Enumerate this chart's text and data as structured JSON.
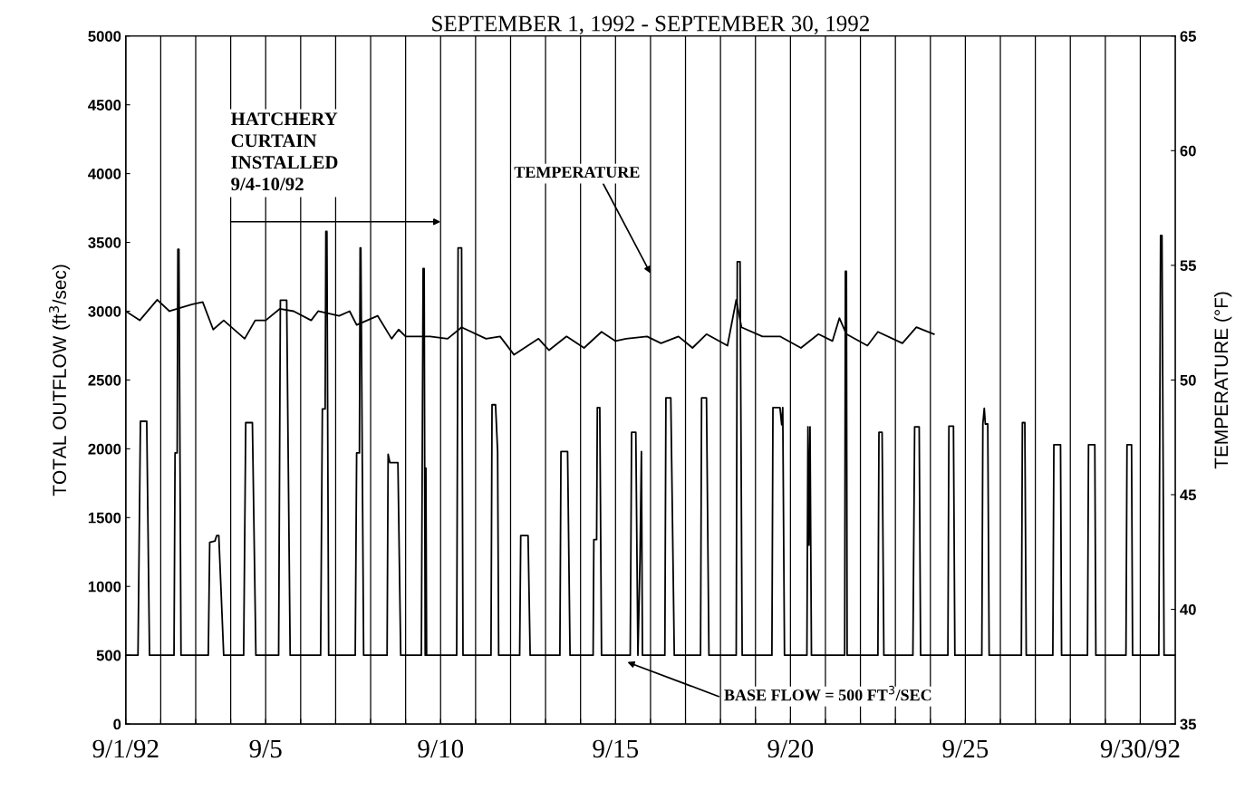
{
  "chart_data": {
    "type": "line",
    "title": "SEPTEMBER 1, 1992 - SEPTEMBER 30, 1992",
    "ylabel": "TOTAL OUTFLOW (ft$^{3}$/sec)",
    "y2label": "TEMPERATURE (°F)",
    "xlim": [
      "1992-09-01",
      "1992-10-01"
    ],
    "xticks": [
      {
        "value": "1992-09-01",
        "label": "9/1/92"
      },
      {
        "value": "1992-09-02",
        "label": null
      },
      {
        "value": "1992-09-03",
        "label": null
      },
      {
        "value": "1992-09-04",
        "label": null
      },
      {
        "value": "1992-09-05",
        "label": "9/5"
      },
      {
        "value": "1992-09-06",
        "label": null
      },
      {
        "value": "1992-09-07",
        "label": null
      },
      {
        "value": "1992-09-08",
        "label": null
      },
      {
        "value": "1992-09-09",
        "label": null
      },
      {
        "value": "1992-09-10",
        "label": "9/10"
      },
      {
        "value": "1992-09-11",
        "label": null
      },
      {
        "value": "1992-09-12",
        "label": null
      },
      {
        "value": "1992-09-13",
        "label": null
      },
      {
        "value": "1992-09-14",
        "label": null
      },
      {
        "value": "1992-09-15",
        "label": "9/15"
      },
      {
        "value": "1992-09-16",
        "label": null
      },
      {
        "value": "1992-09-17",
        "label": null
      },
      {
        "value": "1992-09-18",
        "label": null
      },
      {
        "value": "1992-09-19",
        "label": null
      },
      {
        "value": "1992-09-20",
        "label": "9/20"
      },
      {
        "value": "1992-09-21",
        "label": null
      },
      {
        "value": "1992-09-22",
        "label": null
      },
      {
        "value": "1992-09-23",
        "label": null
      },
      {
        "value": "1992-09-24",
        "label": null
      },
      {
        "value": "1992-09-25",
        "label": "9/25"
      },
      {
        "value": "1992-09-26",
        "label": null
      },
      {
        "value": "1992-09-27",
        "label": null
      },
      {
        "value": "1992-09-28",
        "label": null
      },
      {
        "value": "1992-09-29",
        "label": null
      },
      {
        "value": "1992-09-30",
        "label": "9/30/92"
      }
    ],
    "ylim": [
      0,
      5000
    ],
    "yticks": [
      0,
      500,
      1000,
      1500,
      2000,
      2500,
      3000,
      3500,
      4000,
      4500,
      5000
    ],
    "y2lim": [
      35,
      65
    ],
    "y2ticks": [
      35,
      40,
      45,
      50,
      55,
      60,
      65
    ],
    "grid": "x",
    "annotations": [
      "HATCHERY\nCURTAIN\nINSTALLED\n9/4-10/92",
      "TEMPERATURE",
      "BASE FLOW = 500 FT$^{3}$/SEC"
    ],
    "series": [
      {
        "color": "#000000",
        "x": [
          "1992-09-01T00:00",
          "1992-09-01T08:24",
          "1992-09-01T10:05",
          "1992-09-01T14:24",
          "1992-09-01T16:19",
          "1992-09-02T09:07",
          "1992-09-02T09:50",
          "1992-09-02T11:17",
          "1992-09-02T11:46",
          "1992-09-02T12:29",
          "1992-09-02T13:55",
          "1992-09-03T08:38",
          "1992-09-03T09:36",
          "1992-09-03T13:12",
          "1992-09-03T14:24",
          "1992-09-03T15:50",
          "1992-09-03T19:12",
          "1992-09-04T08:53",
          "1992-09-04T10:19",
          "1992-09-04T14:53",
          "1992-09-04T17:17",
          "1992-09-05T08:53",
          "1992-09-05T10:05",
          "1992-09-05T14:24",
          "1992-09-05T16:48",
          "1992-09-06T13:41",
          "1992-09-06T14:53",
          "1992-09-06T16:48",
          "1992-09-06T17:17",
          "1992-09-06T18:00",
          "1992-09-06T19:12",
          "1992-09-07T13:26",
          "1992-09-07T14:24",
          "1992-09-07T16:19",
          "1992-09-07T16:48",
          "1992-09-07T17:17",
          "1992-09-07T19:12",
          "1992-09-08T11:17",
          "1992-09-08T12:00",
          "1992-09-08T13:12",
          "1992-09-08T18:43",
          "1992-09-08T20:38",
          "1992-09-09T10:48",
          "1992-09-09T12:00",
          "1992-09-09T12:43",
          "1992-09-09T13:26",
          "1992-09-09T13:55",
          "1992-09-09T14:24",
          "1992-09-10T11:02",
          "1992-09-10T12:00",
          "1992-09-10T14:24",
          "1992-09-10T15:22",
          "1992-09-11T10:34",
          "1992-09-11T11:17",
          "1992-09-11T13:41",
          "1992-09-11T15:07",
          "1992-09-11T15:50",
          "1992-09-12T06:14",
          "1992-09-12T06:58",
          "1992-09-12T12:00",
          "1992-09-12T13:26",
          "1992-09-13T09:50",
          "1992-09-13T10:34",
          "1992-09-13T15:07",
          "1992-09-13T16:48",
          "1992-09-14T08:38",
          "1992-09-14T09:07",
          "1992-09-14T11:02",
          "1992-09-14T11:31",
          "1992-09-14T13:12",
          "1992-09-14T14:24",
          "1992-09-15T10:05",
          "1992-09-15T11:02",
          "1992-09-15T13:55",
          "1992-09-15T15:22",
          "1992-09-15T16:48",
          "1992-09-15T17:46",
          "1992-09-15T18:29",
          "1992-09-16T09:50",
          "1992-09-16T10:34",
          "1992-09-16T13:55",
          "1992-09-16T16:19",
          "1992-09-17T10:19",
          "1992-09-17T11:02",
          "1992-09-17T14:24",
          "1992-09-17T16:05",
          "1992-09-18T10:48",
          "1992-09-18T11:31",
          "1992-09-18T13:26",
          "1992-09-18T14:53",
          "1992-09-19T11:17",
          "1992-09-19T12:00",
          "1992-09-19T16:48",
          "1992-09-19T18:00",
          "1992-09-19T18:43",
          "1992-09-19T19:55",
          "1992-09-20T11:17",
          "1992-09-20T12:00",
          "1992-09-20T12:43",
          "1992-09-20T13:26",
          "1992-09-20T14:24",
          "1992-09-21T13:12",
          "1992-09-21T13:41",
          "1992-09-21T14:24",
          "1992-09-21T14:53",
          "1992-09-22T12:00",
          "1992-09-22T12:43",
          "1992-09-22T14:53",
          "1992-09-22T16:05",
          "1992-09-23T12:00",
          "1992-09-23T13:12",
          "1992-09-23T16:19",
          "1992-09-23T17:17",
          "1992-09-24T12:00",
          "1992-09-24T12:43",
          "1992-09-24T15:50",
          "1992-09-24T16:48",
          "1992-09-25T11:17",
          "1992-09-25T12:00",
          "1992-09-25T12:58",
          "1992-09-25T13:41",
          "1992-09-25T15:22",
          "1992-09-25T16:19",
          "1992-09-26T14:24",
          "1992-09-26T15:07",
          "1992-09-26T16:48",
          "1992-09-26T17:46",
          "1992-09-27T12:00",
          "1992-09-27T12:43",
          "1992-09-27T17:17",
          "1992-09-27T18:00",
          "1992-09-28T11:46",
          "1992-09-28T12:29",
          "1992-09-28T16:48",
          "1992-09-28T17:31",
          "1992-09-29T14:10",
          "1992-09-29T14:53",
          "1992-09-29T18:00",
          "1992-09-29T18:43",
          "1992-09-30T12:43",
          "1992-09-30T13:55",
          "1992-09-30T14:53",
          "1992-09-30T16:19",
          "1992-10-01T00:00"
        ],
        "values": [
          500,
          500,
          2200,
          2200,
          500,
          500,
          1970,
          1970,
          3450,
          3450,
          500,
          500,
          1320,
          1330,
          1370,
          1370,
          500,
          500,
          2190,
          2190,
          500,
          500,
          3080,
          3080,
          500,
          500,
          2290,
          2290,
          3580,
          3580,
          500,
          500,
          1970,
          1970,
          3460,
          3460,
          500,
          500,
          1960,
          1900,
          1900,
          500,
          500,
          3310,
          3310,
          500,
          1860,
          500,
          500,
          3460,
          3460,
          500,
          500,
          2320,
          2320,
          1980,
          500,
          500,
          1370,
          1370,
          500,
          500,
          1980,
          1980,
          500,
          500,
          1340,
          1340,
          2300,
          2300,
          500,
          500,
          2120,
          2120,
          500,
          1200,
          1980,
          500,
          500,
          2370,
          2370,
          500,
          500,
          2370,
          2370,
          500,
          500,
          3360,
          3360,
          500,
          500,
          2300,
          2300,
          2175,
          2300,
          500,
          500,
          2160,
          1300,
          2160,
          500,
          500,
          3290,
          3290,
          500,
          500,
          2120,
          2120,
          500,
          500,
          2160,
          2160,
          500,
          500,
          2165,
          2165,
          500,
          500,
          2180,
          2295,
          2180,
          2180,
          500,
          500,
          2190,
          2190,
          500,
          500,
          2030,
          2030,
          500,
          500,
          2030,
          2030,
          500,
          500,
          2030,
          2030,
          500,
          500,
          3550,
          3550,
          500,
          500
        ]
      },
      {
        "color": "#000000",
        "axis": "y2",
        "x": [
          "1992-09-01T00:00",
          "1992-09-01T09:36",
          "1992-09-01T21:36",
          "1992-09-02T06:00",
          "1992-09-02T21:36",
          "1992-09-03T04:48",
          "1992-09-03T12:00",
          "1992-09-03T19:12",
          "1992-09-04T09:36",
          "1992-09-04T16:48",
          "1992-09-05T00:00",
          "1992-09-05T09:36",
          "1992-09-05T19:12",
          "1992-09-06T07:12",
          "1992-09-06T12:00",
          "1992-09-07T02:24",
          "1992-09-07T09:36",
          "1992-09-07T14:24",
          "1992-09-08T04:48",
          "1992-09-08T14:24",
          "1992-09-08T19:12",
          "1992-09-09T00:00",
          "1992-09-09T16:48",
          "1992-09-10T04:48",
          "1992-09-10T14:24",
          "1992-09-11T07:12",
          "1992-09-11T16:48",
          "1992-09-12T02:24",
          "1992-09-12T19:12",
          "1992-09-13T02:24",
          "1992-09-13T14:24",
          "1992-09-14T02:24",
          "1992-09-14T14:24",
          "1992-09-15T00:00",
          "1992-09-15T07:12",
          "1992-09-15T21:36",
          "1992-09-16T07:12",
          "1992-09-16T19:12",
          "1992-09-17T04:48",
          "1992-09-17T14:24",
          "1992-09-18T04:48",
          "1992-09-18T10:48",
          "1992-09-18T12:00",
          "1992-09-18T14:24",
          "1992-09-19T04:48",
          "1992-09-19T16:48",
          "1992-09-20T07:12",
          "1992-09-20T19:12",
          "1992-09-21T04:48",
          "1992-09-21T09:36",
          "1992-09-21T14:24",
          "1992-09-22T04:48",
          "1992-09-22T12:00",
          "1992-09-23T04:48",
          "1992-09-23T14:24",
          "1992-09-24T02:24"
        ],
        "values": [
          53.0,
          52.6,
          53.5,
          53.0,
          53.3,
          53.4,
          52.2,
          52.6,
          51.8,
          52.6,
          52.6,
          53.1,
          53.0,
          52.6,
          53.0,
          52.8,
          53.0,
          52.4,
          52.8,
          51.8,
          52.2,
          51.9,
          51.9,
          51.8,
          52.3,
          51.8,
          51.9,
          51.1,
          51.8,
          51.3,
          51.9,
          51.4,
          52.1,
          51.7,
          51.8,
          51.9,
          51.6,
          51.9,
          51.4,
          52.0,
          51.5,
          53.5,
          53.1,
          52.3,
          51.9,
          51.9,
          51.4,
          52.0,
          51.7,
          52.7,
          52.0,
          51.5,
          52.1,
          51.6,
          52.3,
          52.0
        ]
      }
    ]
  }
}
